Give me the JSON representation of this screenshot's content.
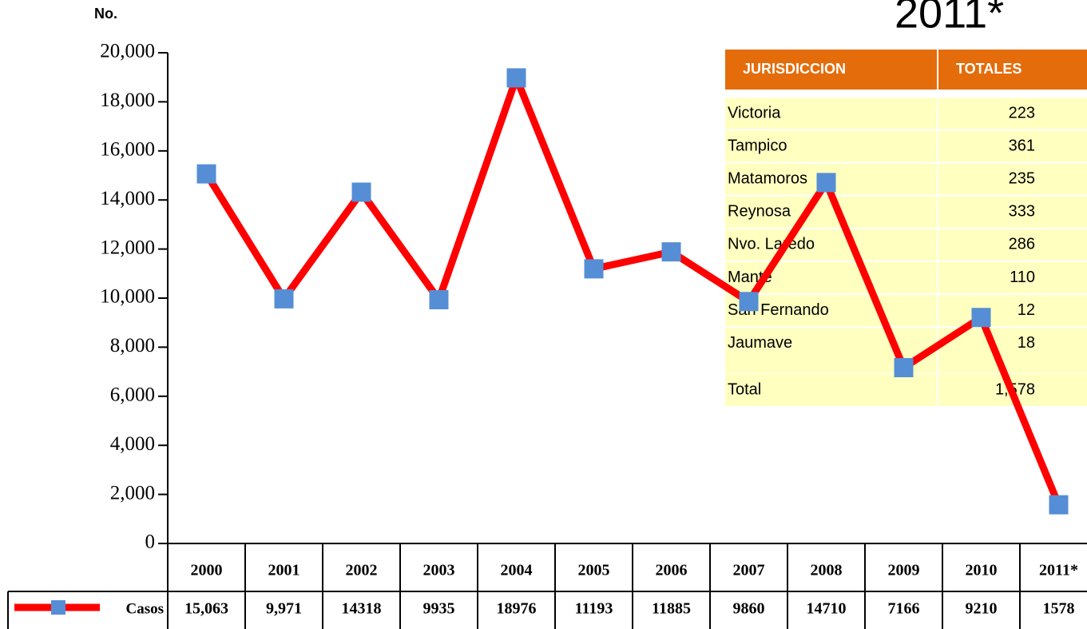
{
  "chart_data": {
    "type": "line",
    "title": "2011*",
    "y_label": "No.",
    "categories": [
      "2000",
      "2001",
      "2002",
      "2003",
      "2004",
      "2005",
      "2006",
      "2007",
      "2008",
      "2009",
      "2010",
      "2011*"
    ],
    "series": [
      {
        "name": "Casos",
        "color": "#ff0000",
        "marker_color": "#558ed5",
        "values": [
          15063,
          9971,
          14318,
          9935,
          18976,
          11193,
          11885,
          9860,
          14710,
          7166,
          9210,
          1578
        ],
        "value_labels": [
          "15,063",
          "9,971",
          "14318",
          "9935",
          "18976",
          "11193",
          "11885",
          "9860",
          "14710",
          "7166",
          "9210",
          "1578"
        ]
      }
    ],
    "ylim": [
      0,
      20000
    ],
    "yticks": [
      0,
      {
        "value": 2000,
        "label": "2,000"
      },
      {
        "value": 4000,
        "label": "4,000"
      },
      {
        "value": 6000,
        "label": "6,000"
      },
      {
        "value": 8000,
        "label": "8,000"
      },
      {
        "value": 10000,
        "label": "10,000"
      },
      {
        "value": 12000,
        "label": "12,000"
      },
      {
        "value": 14000,
        "label": "14,000"
      },
      {
        "value": 16000,
        "label": "16,000"
      },
      {
        "value": 18000,
        "label": "18,000"
      },
      {
        "value": 20000,
        "label": "20,000"
      }
    ]
  },
  "table": {
    "headers": [
      "JURISDICCION",
      "TOTALES"
    ],
    "rows": [
      [
        "Victoria",
        "223"
      ],
      [
        "Tampico",
        "361"
      ],
      [
        "Matamoros",
        "235"
      ],
      [
        "Reynosa",
        "333"
      ],
      [
        "Nvo. Laredo",
        "286"
      ],
      [
        "Mante",
        "110"
      ],
      [
        "San Fernando",
        "12"
      ],
      [
        "Jaumave",
        "18"
      ]
    ],
    "total": [
      "Total",
      "1,578"
    ]
  }
}
